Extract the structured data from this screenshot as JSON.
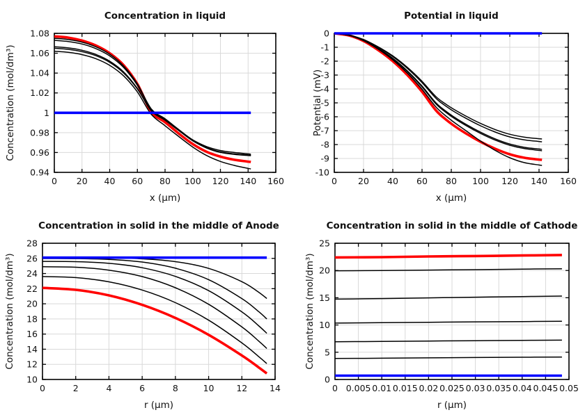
{
  "page": {
    "background": "#ffffff"
  },
  "palette": {
    "final": "#ff0000",
    "intermediate": "#000000",
    "initial": "#0000ff",
    "grid": "#d9d9d9",
    "axis": "#000000"
  },
  "chart_data": [
    {
      "type": "line",
      "title": "Concentration in liquid",
      "xlabel": "x (μm)",
      "ylabel": "Concentration (mol/dm³)",
      "xlim": [
        0,
        160
      ],
      "ylim": [
        0.94,
        1.08
      ],
      "grid": true,
      "legend": "none",
      "x_ticks": {
        "values": [
          0,
          20,
          40,
          60,
          80,
          100,
          120,
          140,
          160
        ],
        "labels": [
          "0",
          "20",
          "40",
          "60",
          "80",
          "100",
          "120",
          "140",
          "160"
        ]
      },
      "y_ticks": {
        "values": [
          0.94,
          0.96,
          0.98,
          1,
          1.02,
          1.04,
          1.06,
          1.08
        ],
        "labels": [
          "0.94",
          "0.96",
          "0.98",
          "1",
          "1.02",
          "1.04",
          "1.06",
          "1.08"
        ]
      },
      "series": [
        {
          "name": "red-final",
          "color": "#ff0000",
          "width": 3.6,
          "x": [
            0,
            10,
            20,
            30,
            40,
            50,
            60,
            70,
            80,
            90,
            100,
            110,
            120,
            130,
            140,
            142
          ],
          "y": [
            1.077,
            1.0757,
            1.0727,
            1.0678,
            1.06,
            1.048,
            1.029,
            1.001,
            0.9905,
            0.979,
            0.9685,
            0.9607,
            0.9558,
            0.9527,
            0.9508,
            0.9505
          ]
        },
        {
          "name": "black-1",
          "color": "#000000",
          "width": 1.5,
          "x": [
            0,
            10,
            20,
            30,
            40,
            50,
            60,
            70,
            80,
            90,
            100,
            110,
            120,
            130,
            140,
            142
          ],
          "y": [
            1.075,
            1.0738,
            1.0712,
            1.0665,
            1.059,
            1.0472,
            1.029,
            1.004,
            0.994,
            0.983,
            0.9725,
            0.965,
            0.9605,
            0.9585,
            0.9575,
            0.9573
          ]
        },
        {
          "name": "black-2",
          "color": "#000000",
          "width": 1.5,
          "x": [
            0,
            10,
            20,
            30,
            40,
            50,
            60,
            70,
            80,
            90,
            100,
            110,
            120,
            130,
            140,
            142
          ],
          "y": [
            1.073,
            1.0718,
            1.0693,
            1.0647,
            1.0573,
            1.0457,
            1.0278,
            1.0035,
            0.9933,
            0.9823,
            0.9719,
            0.9645,
            0.9601,
            0.9581,
            0.957,
            0.9568
          ]
        },
        {
          "name": "black-3",
          "color": "#000000",
          "width": 1.5,
          "x": [
            0,
            10,
            20,
            30,
            40,
            50,
            60,
            70,
            80,
            90,
            100,
            110,
            120,
            130,
            140,
            142
          ],
          "y": [
            1.0665,
            1.0654,
            1.063,
            1.0588,
            1.052,
            1.0412,
            1.0245,
            1.002,
            0.9925,
            0.982,
            0.9718,
            0.9648,
            0.9606,
            0.9586,
            0.9574,
            0.9572
          ]
        },
        {
          "name": "black-4",
          "color": "#000000",
          "width": 1.5,
          "x": [
            0,
            10,
            20,
            30,
            40,
            50,
            60,
            70,
            80,
            90,
            100,
            110,
            120,
            130,
            140,
            142
          ],
          "y": [
            1.065,
            1.0639,
            1.0616,
            1.0575,
            1.0508,
            1.0402,
            1.024,
            1.0022,
            0.9928,
            0.9826,
            0.9727,
            0.966,
            0.962,
            0.96,
            0.9586,
            0.9583
          ]
        },
        {
          "name": "black-5",
          "color": "#000000",
          "width": 1.5,
          "x": [
            0,
            10,
            20,
            30,
            40,
            50,
            60,
            70,
            80,
            90,
            100,
            110,
            120,
            130,
            140,
            142
          ],
          "y": [
            1.062,
            1.0609,
            1.0586,
            1.0545,
            1.0478,
            1.0372,
            1.021,
            0.9985,
            0.987,
            0.976,
            0.9655,
            0.957,
            0.951,
            0.947,
            0.944,
            0.9435
          ]
        },
        {
          "name": "blue-initial",
          "color": "#0000ff",
          "width": 3.6,
          "x": [
            0,
            142
          ],
          "y": [
            1.0,
            1.0
          ]
        }
      ]
    },
    {
      "type": "line",
      "title": "Potential in liquid",
      "xlabel": "x (μm)",
      "ylabel": "Potential (mV)",
      "xlim": [
        0,
        160
      ],
      "ylim": [
        -10,
        0
      ],
      "grid": true,
      "legend": "none",
      "x_ticks": {
        "values": [
          0,
          20,
          40,
          60,
          80,
          100,
          120,
          140,
          160
        ],
        "labels": [
          "0",
          "20",
          "40",
          "60",
          "80",
          "100",
          "120",
          "140",
          "160"
        ]
      },
      "y_ticks": {
        "values": [
          -10,
          -9,
          -8,
          -7,
          -6,
          -5,
          -4,
          -3,
          -2,
          -1,
          0
        ],
        "labels": [
          "-10",
          "-9",
          "-8",
          "-7",
          "-6",
          "-5",
          "-4",
          "-3",
          "-2",
          "-1",
          "0"
        ]
      },
      "series": [
        {
          "name": "red-final",
          "color": "#ff0000",
          "width": 3.6,
          "x": [
            0,
            10,
            20,
            30,
            40,
            50,
            60,
            70,
            80,
            90,
            100,
            110,
            120,
            130,
            140,
            142
          ],
          "y": [
            0,
            -0.15,
            -0.55,
            -1.2,
            -2.0,
            -3.0,
            -4.2,
            -5.6,
            -6.5,
            -7.2,
            -7.8,
            -8.3,
            -8.7,
            -8.95,
            -9.08,
            -9.1
          ]
        },
        {
          "name": "black-1",
          "color": "#000000",
          "width": 1.5,
          "x": [
            0,
            10,
            20,
            30,
            40,
            50,
            60,
            70,
            80,
            90,
            100,
            110,
            120,
            130,
            140,
            142
          ],
          "y": [
            0,
            -0.12,
            -0.44,
            -0.97,
            -1.62,
            -2.45,
            -3.45,
            -4.6,
            -5.35,
            -5.95,
            -6.48,
            -6.92,
            -7.26,
            -7.47,
            -7.58,
            -7.6
          ]
        },
        {
          "name": "black-2",
          "color": "#000000",
          "width": 1.5,
          "x": [
            0,
            10,
            20,
            30,
            40,
            50,
            60,
            70,
            80,
            90,
            100,
            110,
            120,
            130,
            140,
            142
          ],
          "y": [
            0,
            -0.13,
            -0.46,
            -1.0,
            -1.67,
            -2.52,
            -3.54,
            -4.72,
            -5.5,
            -6.11,
            -6.65,
            -7.1,
            -7.45,
            -7.66,
            -7.78,
            -7.8
          ]
        },
        {
          "name": "black-3",
          "color": "#000000",
          "width": 1.5,
          "x": [
            0,
            10,
            20,
            30,
            40,
            50,
            60,
            70,
            80,
            90,
            100,
            110,
            120,
            130,
            140,
            142
          ],
          "y": [
            0,
            -0.13,
            -0.49,
            -1.07,
            -1.79,
            -2.7,
            -3.79,
            -5.05,
            -5.88,
            -6.54,
            -7.11,
            -7.59,
            -7.96,
            -8.2,
            -8.32,
            -8.35
          ]
        },
        {
          "name": "black-4",
          "color": "#000000",
          "width": 1.5,
          "x": [
            0,
            10,
            20,
            30,
            40,
            50,
            60,
            70,
            80,
            90,
            100,
            110,
            120,
            130,
            140,
            142
          ],
          "y": [
            0,
            -0.14,
            -0.5,
            -1.09,
            -1.82,
            -2.74,
            -3.85,
            -5.13,
            -5.97,
            -6.63,
            -7.2,
            -7.68,
            -8.05,
            -8.29,
            -8.42,
            -8.45
          ]
        },
        {
          "name": "black-5",
          "color": "#000000",
          "width": 1.5,
          "x": [
            0,
            10,
            20,
            30,
            40,
            50,
            60,
            70,
            80,
            90,
            100,
            110,
            120,
            130,
            140,
            142
          ],
          "y": [
            0,
            -0.14,
            -0.52,
            -1.13,
            -1.9,
            -2.86,
            -4.02,
            -5.35,
            -6.25,
            -7.0,
            -7.75,
            -8.42,
            -8.95,
            -9.3,
            -9.47,
            -9.5
          ]
        },
        {
          "name": "blue-initial",
          "color": "#0000ff",
          "width": 3.6,
          "x": [
            0,
            142
          ],
          "y": [
            0,
            0
          ]
        }
      ]
    },
    {
      "type": "line",
      "title": "Concentration in solid in the middle of Anode",
      "xlabel": "r (μm)",
      "ylabel": "Concentration (mol/dm³)",
      "xlim": [
        0,
        14
      ],
      "ylim": [
        10,
        28
      ],
      "grid": true,
      "legend": "none",
      "x_ticks": {
        "values": [
          0,
          2,
          4,
          6,
          8,
          10,
          12,
          14
        ],
        "labels": [
          "0",
          "2",
          "4",
          "6",
          "8",
          "10",
          "12",
          "14"
        ]
      },
      "y_ticks": {
        "values": [
          10,
          12,
          14,
          16,
          18,
          20,
          22,
          24,
          26,
          28
        ],
        "labels": [
          "10",
          "12",
          "14",
          "16",
          "18",
          "20",
          "22",
          "24",
          "26",
          "28"
        ]
      },
      "series": [
        {
          "name": "red-final",
          "color": "#ff0000",
          "width": 3.6,
          "x": [
            0,
            2,
            4,
            6,
            8,
            10,
            12,
            13,
            13.5
          ],
          "y": [
            22.1,
            21.85,
            21.11,
            19.86,
            18.13,
            15.9,
            13.17,
            11.62,
            10.8
          ]
        },
        {
          "name": "black-1",
          "color": "#000000",
          "width": 1.5,
          "x": [
            0,
            2,
            4,
            6,
            8,
            10,
            12,
            13,
            13.5
          ],
          "y": [
            26.08,
            26.08,
            26.06,
            25.94,
            25.57,
            24.68,
            22.92,
            21.55,
            20.7
          ]
        },
        {
          "name": "black-2",
          "color": "#000000",
          "width": 1.5,
          "x": [
            0,
            2,
            4,
            6,
            8,
            10,
            12,
            13,
            13.5
          ],
          "y": [
            25.98,
            25.97,
            25.87,
            25.52,
            24.7,
            23.19,
            20.69,
            18.99,
            18.0
          ]
        },
        {
          "name": "black-3",
          "color": "#000000",
          "width": 1.5,
          "x": [
            0,
            2,
            4,
            6,
            8,
            10,
            12,
            13,
            13.5
          ],
          "y": [
            25.6,
            25.57,
            25.35,
            24.77,
            23.62,
            21.74,
            18.93,
            17.12,
            16.1
          ]
        },
        {
          "name": "black-4",
          "color": "#000000",
          "width": 1.5,
          "x": [
            0,
            2,
            4,
            6,
            8,
            10,
            12,
            13,
            13.5
          ],
          "y": [
            24.9,
            24.83,
            24.45,
            23.6,
            22.12,
            19.94,
            16.94,
            15.11,
            14.1
          ]
        },
        {
          "name": "black-5",
          "color": "#000000",
          "width": 1.5,
          "x": [
            0,
            2,
            4,
            6,
            8,
            10,
            12,
            13,
            13.5
          ],
          "y": [
            23.6,
            23.46,
            22.9,
            21.82,
            20.15,
            17.83,
            14.83,
            13.05,
            12.1
          ]
        },
        {
          "name": "blue-initial",
          "color": "#0000ff",
          "width": 3.6,
          "x": [
            0,
            13.5
          ],
          "y": [
            26.1,
            26.1
          ]
        }
      ]
    },
    {
      "type": "line",
      "title": "Concentration in solid in the middle of Cathode",
      "xlabel": "r (μm)",
      "ylabel": "Concentration (mol/dm³)",
      "xlim": [
        0,
        0.05
      ],
      "ylim": [
        0,
        25
      ],
      "grid": true,
      "legend": "none",
      "x_ticks": {
        "values": [
          0,
          0.005,
          0.01,
          0.015,
          0.02,
          0.025,
          0.03,
          0.035,
          0.04,
          0.045,
          0.05
        ],
        "labels": [
          "0",
          "0.005",
          "0.01",
          "0.015",
          "0.02",
          "0.025",
          "0.03",
          "0.035",
          "0.04",
          "0.045",
          "0.05"
        ]
      },
      "y_ticks": {
        "values": [
          0,
          5,
          10,
          15,
          20,
          25
        ],
        "labels": [
          "0",
          "5",
          "10",
          "15",
          "20",
          "25"
        ]
      },
      "series": [
        {
          "name": "red-final",
          "color": "#ff0000",
          "width": 3.6,
          "x": [
            0,
            0.01,
            0.02,
            0.03,
            0.04,
            0.0485
          ],
          "y": [
            22.4,
            22.45,
            22.58,
            22.65,
            22.75,
            22.85
          ]
        },
        {
          "name": "black-1",
          "color": "#000000",
          "width": 1.5,
          "x": [
            0,
            0.01,
            0.02,
            0.03,
            0.04,
            0.0485
          ],
          "y": [
            19.95,
            20.0,
            20.08,
            20.15,
            20.25,
            20.3
          ]
        },
        {
          "name": "black-2",
          "color": "#000000",
          "width": 1.5,
          "x": [
            0,
            0.01,
            0.02,
            0.03,
            0.04,
            0.0485
          ],
          "y": [
            14.75,
            14.85,
            14.97,
            15.1,
            15.22,
            15.3
          ]
        },
        {
          "name": "black-3",
          "color": "#000000",
          "width": 1.5,
          "x": [
            0,
            0.01,
            0.02,
            0.03,
            0.04,
            0.0485
          ],
          "y": [
            10.35,
            10.42,
            10.5,
            10.57,
            10.63,
            10.68
          ]
        },
        {
          "name": "black-4",
          "color": "#000000",
          "width": 1.5,
          "x": [
            0,
            0.01,
            0.02,
            0.03,
            0.04,
            0.0485
          ],
          "y": [
            6.92,
            6.98,
            7.05,
            7.12,
            7.18,
            7.22
          ]
        },
        {
          "name": "black-5",
          "color": "#000000",
          "width": 1.5,
          "x": [
            0,
            0.01,
            0.02,
            0.03,
            0.04,
            0.0485
          ],
          "y": [
            3.85,
            3.9,
            3.97,
            4.03,
            4.08,
            4.12
          ]
        },
        {
          "name": "blue-initial",
          "color": "#0000ff",
          "width": 3.6,
          "x": [
            0,
            0.0485
          ],
          "y": [
            0.7,
            0.7
          ]
        }
      ]
    }
  ]
}
